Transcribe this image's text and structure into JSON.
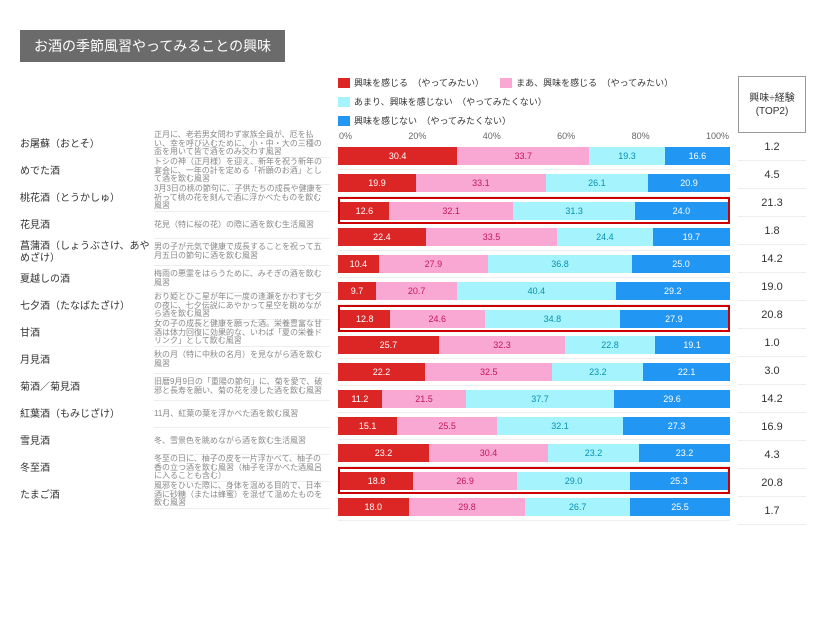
{
  "title": "お酒の季節風習やってみることの興味",
  "legend": [
    {
      "label": "興味を感じる　（やってみたい）",
      "color": "#dc2626",
      "text": "#fff"
    },
    {
      "label": "まあ、興味を感じる　（やってみたい）",
      "color": "#f9a8d4",
      "text": "#c2185b"
    },
    {
      "label": "あまり、興味を感じない　（やってみたくない）",
      "color": "#a5f3fc",
      "text": "#0891b2"
    },
    {
      "label": "興味を感じない　（やってみたくない）",
      "color": "#2196f3",
      "text": "#fff"
    }
  ],
  "axis": [
    "0%",
    "20%",
    "40%",
    "60%",
    "80%",
    "100%"
  ],
  "right_header": "興味÷経験\n(TOP2)",
  "rows": [
    {
      "name": "お屠蘇（おとそ）",
      "desc": "正月に、老若男女問わず家族全員が、厄を払い、幸を呼び込むために、小・中・大の三種の盃を用いて皆で酒をのみ交わす風習",
      "vals": [
        30.4,
        33.7,
        19.3,
        16.6
      ],
      "score": "1.2",
      "hl": false
    },
    {
      "name": "めでた酒",
      "desc": "トシの神（正月様）を迎え、新年を祝う新年の宴会に、一年の計を定める「祈願のお酒」として酒を飲む風習",
      "vals": [
        19.9,
        33.1,
        26.1,
        20.9
      ],
      "score": "4.5",
      "hl": false
    },
    {
      "name": "桃花酒（とうかしゅ）",
      "desc": "3月3日の桃の節句に、子供たちの成長や健康を祈って桃の花を刻んで酒に浮かべたものを飲む風習",
      "vals": [
        12.6,
        32.1,
        31.3,
        24.0
      ],
      "score": "21.3",
      "hl": true
    },
    {
      "name": "花見酒",
      "desc": "花見（特に桜の花）の際に酒を飲む生活風習",
      "vals": [
        22.4,
        33.5,
        24.4,
        19.7
      ],
      "score": "1.8",
      "hl": false
    },
    {
      "name": "菖蒲酒（しょうぶさけ、あやめざけ）",
      "desc": "男の子が元気で健康で成長することを祝って五月五日の節句に酒を飲む風習",
      "vals": [
        10.4,
        27.9,
        36.8,
        25.0
      ],
      "score": "14.2",
      "hl": false
    },
    {
      "name": "夏越しの酒",
      "desc": "梅雨の悪霊をはらうために、みそぎの酒を飲む風習",
      "vals": [
        9.7,
        20.7,
        40.4,
        29.2
      ],
      "score": "19.0",
      "hl": false
    },
    {
      "name": "七夕酒（たなばたざけ）",
      "desc": "おり姫とひこ星が年に一度の逢瀬をかわす七夕の夜に、七夕伝説にあやかって星空を眺めながら酒を飲む風習",
      "vals": [
        12.8,
        24.6,
        34.8,
        27.9
      ],
      "score": "20.8",
      "hl": true
    },
    {
      "name": "甘酒",
      "desc": "女の子の成長と健康を願った酒。栄養豊富な甘酒は体力回復に効果的な、いわば「夏の栄養ドリンク」として飲む風習",
      "vals": [
        25.7,
        32.3,
        22.8,
        19.1
      ],
      "score": "1.0",
      "hl": false
    },
    {
      "name": "月見酒",
      "desc": "秋の月（特に中秋の名月）を見ながら酒を飲む風習",
      "vals": [
        22.2,
        32.5,
        23.2,
        22.1
      ],
      "score": "3.0",
      "hl": false
    },
    {
      "name": "菊酒／菊見酒",
      "desc": "旧暦9月9日の「重陽の節句」に、菊を愛で、破邪と長寿を願い、菊の花を浸した酒を飲む風習",
      "vals": [
        11.2,
        21.5,
        37.7,
        29.6
      ],
      "score": "14.2",
      "hl": false
    },
    {
      "name": "紅葉酒（もみじざけ）",
      "desc": "11月、紅葉の葉を浮かべた酒を飲む風習",
      "vals": [
        15.1,
        25.5,
        32.1,
        27.3
      ],
      "score": "16.9",
      "hl": false
    },
    {
      "name": "雪見酒",
      "desc": "冬、雪景色を眺めながら酒を飲む生活風習",
      "vals": [
        23.2,
        30.4,
        23.2,
        23.2
      ],
      "score": "4.3",
      "hl": false
    },
    {
      "name": "冬至酒",
      "desc": "冬至の日に、柚子の皮を一片浮かべて、柚子の香の立つ酒を飲む風習（柚子を浮かべた酒風呂に入ることも含む）",
      "vals": [
        18.8,
        26.9,
        29.0,
        25.3
      ],
      "score": "20.8",
      "hl": true
    },
    {
      "name": "たまご酒",
      "desc": "風邪をひいた際に、身体を温める目的で、日本酒に砂糖（または蜂蜜）を混ぜて温めたものを飲む風習",
      "vals": [
        18.0,
        29.8,
        26.7,
        25.5
      ],
      "score": "1.7",
      "hl": false
    }
  ]
}
